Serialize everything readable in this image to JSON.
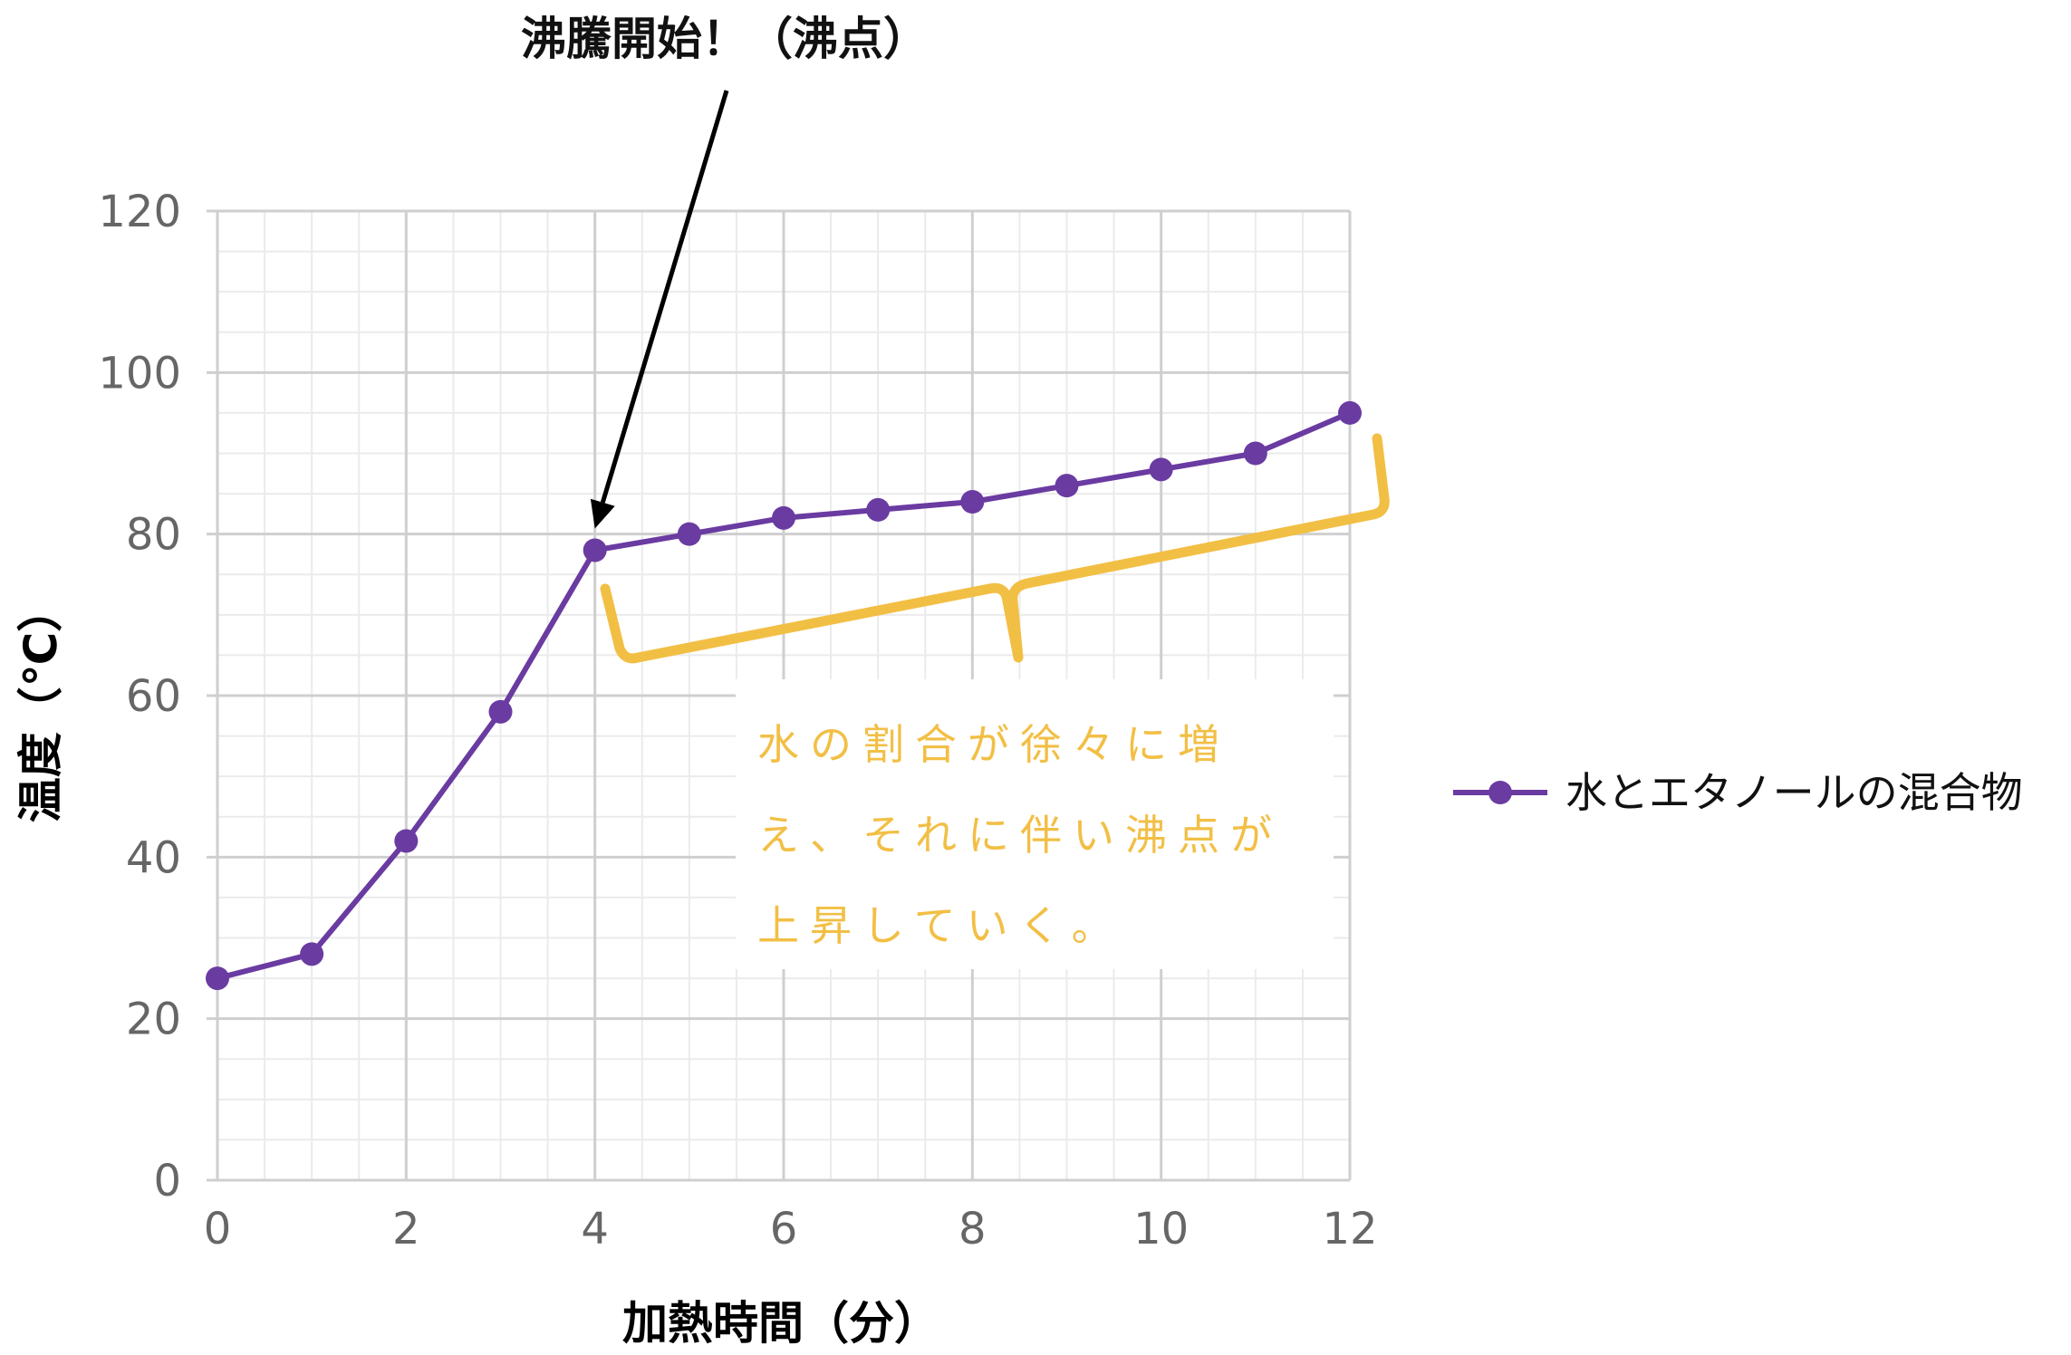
{
  "chart_data": {
    "type": "line",
    "x": [
      0,
      1,
      2,
      3,
      4,
      5,
      6,
      7,
      8,
      9,
      10,
      11,
      12
    ],
    "series": [
      {
        "name": "水とエタノールの混合物",
        "values": [
          25,
          28,
          42,
          58,
          78,
          80,
          82,
          83,
          84,
          86,
          88,
          90,
          95
        ],
        "color": "#6a3ba1"
      }
    ],
    "xlabel": "加熱時間（分）",
    "ylabel": "温度（℃）",
    "xlim": [
      0,
      12
    ],
    "ylim": [
      0,
      120
    ],
    "x_ticks": [
      "0",
      "2",
      "4",
      "6",
      "8",
      "10",
      "12"
    ],
    "y_ticks": [
      "0",
      "20",
      "40",
      "60",
      "80",
      "100",
      "120"
    ],
    "grid": true,
    "legend": "right",
    "annotations": [
      {
        "text": "沸騰開始！（沸点）",
        "x": 4,
        "y": 78,
        "type": "arrow"
      },
      {
        "text": "水の割合が徐々に増え、それに伴い沸点が上昇していく。",
        "x_range": [
          4,
          12
        ],
        "type": "brace",
        "color": "#f2bf45"
      }
    ]
  }
}
